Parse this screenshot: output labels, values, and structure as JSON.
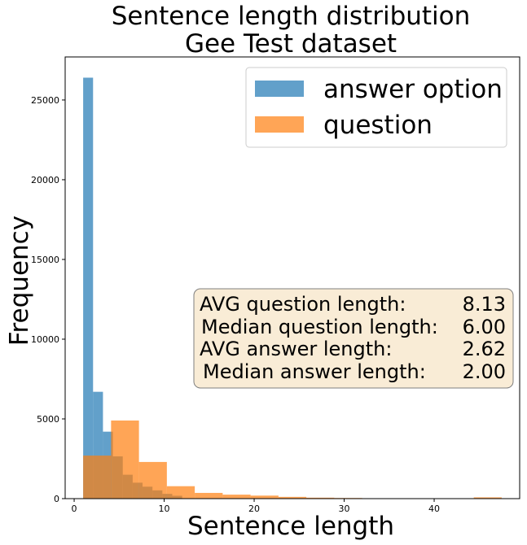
{
  "chart_data": {
    "type": "bar",
    "title": [
      "Sentence length distribution",
      "Gee Test dataset"
    ],
    "xlabel": "Sentence length",
    "ylabel": "Frequency",
    "xlim": [
      -1,
      49.5
    ],
    "ylim": [
      0,
      27700
    ],
    "xticks": [
      0,
      10,
      20,
      30,
      40
    ],
    "yticks": [
      0,
      5000,
      10000,
      15000,
      20000,
      25000
    ],
    "legend": {
      "placement": "top-right"
    },
    "series": [
      {
        "name": "answer option",
        "color": "#1f77b4",
        "opacity": 0.7,
        "bin_edges": [
          1,
          2.1,
          3.2,
          4.3,
          5.4,
          6.5,
          7.6,
          8.7,
          9.8,
          10.9,
          12.0
        ],
        "values": [
          26400,
          6700,
          4200,
          2650,
          1500,
          1000,
          750,
          520,
          300,
          180
        ]
      },
      {
        "name": "question",
        "color": "#ff7f0e",
        "opacity": 0.7,
        "bin_edges": [
          1,
          4.1,
          7.2,
          10.3,
          13.4,
          16.5,
          19.6,
          22.7,
          25.8,
          28.9,
          32.0,
          35.1,
          38.2,
          41.3,
          44.4,
          47.5
        ],
        "values": [
          2700,
          4900,
          2300,
          780,
          360,
          250,
          190,
          110,
          60,
          40,
          20,
          12,
          6,
          3,
          80
        ]
      }
    ],
    "annotation": {
      "rows": [
        {
          "label": "AVG question length:",
          "value": "8.13"
        },
        {
          "label": "Median question length:",
          "value": "6.00"
        },
        {
          "label": "AVG answer length:",
          "value": "2.62"
        },
        {
          "label": "Median answer length:",
          "value": "2.00"
        }
      ],
      "background": "#f9ecd6",
      "border": "#7f7f7f"
    }
  }
}
